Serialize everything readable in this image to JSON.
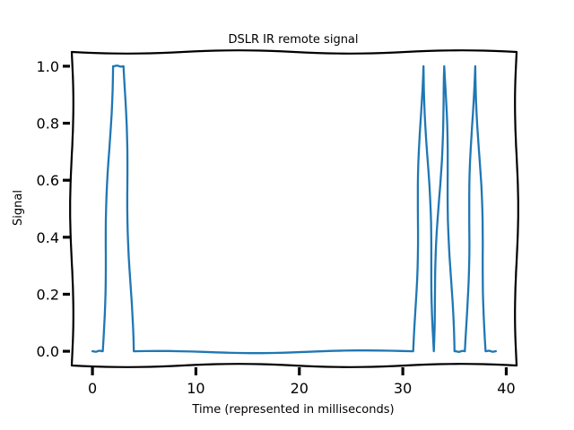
{
  "chart_data": {
    "type": "line",
    "title": "DSLR IR remote signal",
    "xlabel": "Time (represented in milliseconds)",
    "ylabel": "Signal",
    "xlim": [
      -2,
      41
    ],
    "ylim": [
      -0.05,
      1.05
    ],
    "x_ticks": [
      0,
      10,
      20,
      30,
      40
    ],
    "y_ticks": [
      0.0,
      0.2,
      0.4,
      0.6,
      0.8,
      1.0
    ],
    "x_tick_labels": [
      "0",
      "10",
      "20",
      "30",
      "40"
    ],
    "y_tick_labels": [
      "0.0",
      "0.2",
      "0.4",
      "0.6",
      "0.8",
      "1.0"
    ],
    "grid": false,
    "style": "xkcd",
    "series_color": "#1f77b4",
    "series": [
      {
        "x": [
          0,
          1,
          2,
          3,
          4,
          31,
          32,
          33,
          34,
          35,
          36,
          37,
          38,
          39
        ],
        "values": [
          0,
          0,
          1,
          1,
          0,
          0,
          1,
          0,
          1,
          0,
          0,
          1,
          0,
          0
        ]
      }
    ]
  }
}
